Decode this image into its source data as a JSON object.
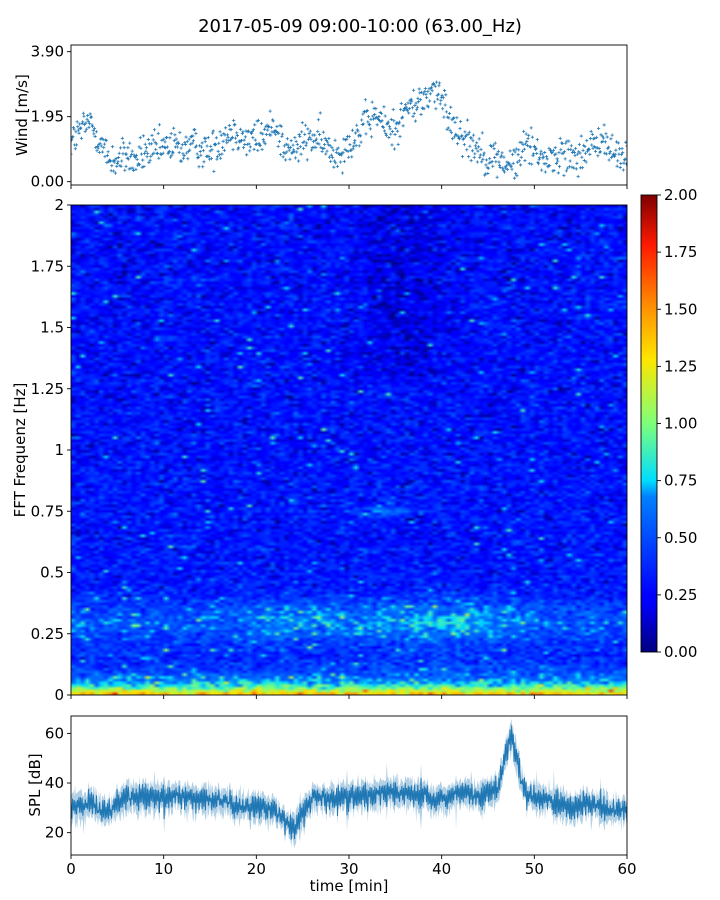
{
  "figure_title": "2017-05-09 09:00-10:00 (63.00_Hz)",
  "chart_data": [
    {
      "type": "scatter",
      "panel": "wind",
      "ylabel": "Wind [m/s]",
      "xlabel": "",
      "xlim": [
        0,
        60
      ],
      "ylim": [
        -0.1,
        4.1
      ],
      "yticks": [
        "0.00",
        "1.95",
        "3.90"
      ],
      "ytick_values": [
        0.0,
        1.95,
        3.9
      ],
      "marker": "+",
      "color": "#1f77b4",
      "x": [
        0,
        1,
        2,
        3,
        4,
        5,
        6,
        7,
        8,
        9,
        10,
        11,
        12,
        13,
        14,
        15,
        16,
        17,
        18,
        19,
        20,
        21,
        22,
        23,
        24,
        25,
        26,
        27,
        28,
        29,
        30,
        31,
        32,
        33,
        34,
        35,
        36,
        37,
        38,
        39,
        40,
        41,
        42,
        43,
        44,
        45,
        46,
        47,
        48,
        49,
        50,
        51,
        52,
        53,
        54,
        55,
        56,
        57,
        58,
        59,
        60
      ],
      "y": [
        1.2,
        1.5,
        1.8,
        1.3,
        0.7,
        0.6,
        0.8,
        0.6,
        0.9,
        0.9,
        1.0,
        1.1,
        1.0,
        1.1,
        1.0,
        0.9,
        1.2,
        1.5,
        1.5,
        1.2,
        1.3,
        1.4,
        1.8,
        1.0,
        0.9,
        1.2,
        1.3,
        1.2,
        0.9,
        0.9,
        1.2,
        1.4,
        1.8,
        2.0,
        1.6,
        1.6,
        2.1,
        2.3,
        2.4,
        2.8,
        2.4,
        1.8,
        1.5,
        1.2,
        1.0,
        0.7,
        0.7,
        0.5,
        0.5,
        1.2,
        1.0,
        0.7,
        0.7,
        0.8,
        0.8,
        0.9,
        0.9,
        1.3,
        1.0,
        0.8,
        0.8
      ]
    },
    {
      "type": "heatmap",
      "panel": "spectrogram",
      "ylabel": "FFT Frequenz [Hz]",
      "xlim": [
        0,
        60
      ],
      "ylim": [
        0,
        2
      ],
      "yticks": [
        "0",
        "0.25",
        "0.5",
        "0.75",
        "1",
        "1.25",
        "1.5",
        "1.75",
        "2"
      ],
      "ytick_values": [
        0,
        0.25,
        0.5,
        0.75,
        1.0,
        1.25,
        1.5,
        1.75,
        2.0
      ],
      "colormap": "jet",
      "colorbar": {
        "ticks": [
          "0.00",
          "0.25",
          "0.50",
          "0.75",
          "1.00",
          "1.25",
          "1.50",
          "1.75",
          "2.00"
        ],
        "tick_values": [
          0,
          0.25,
          0.5,
          0.75,
          1.0,
          1.25,
          1.5,
          1.75,
          2.0
        ],
        "range": [
          0,
          2
        ]
      },
      "time_bins": 120,
      "freq_bins": 180
    },
    {
      "type": "line",
      "panel": "spl",
      "xlabel": "time [min]",
      "ylabel": "SPL [dB]",
      "xlim": [
        0,
        60
      ],
      "ylim": [
        11,
        67
      ],
      "xticks": [
        "0",
        "10",
        "20",
        "30",
        "40",
        "50",
        "60"
      ],
      "xtick_values": [
        0,
        10,
        20,
        30,
        40,
        50,
        60
      ],
      "yticks": [
        "20",
        "40",
        "60"
      ],
      "ytick_values": [
        20,
        40,
        60
      ],
      "color": "#1f77b4",
      "x": [
        0,
        2,
        4,
        6,
        8,
        10,
        12,
        14,
        16,
        18,
        20,
        22,
        23,
        24,
        25,
        26,
        28,
        30,
        32,
        34,
        36,
        38,
        40,
        42,
        44,
        45,
        46,
        47,
        47.5,
        48,
        49,
        50,
        52,
        54,
        56,
        58,
        60
      ],
      "y": [
        30,
        32,
        28,
        35,
        34,
        35,
        35,
        33,
        33,
        31,
        31,
        28,
        25,
        22,
        28,
        34,
        34,
        35,
        35,
        37,
        36,
        35,
        34,
        36,
        35,
        36,
        38,
        52,
        60,
        50,
        36,
        35,
        33,
        30,
        32,
        30,
        28
      ]
    }
  ]
}
